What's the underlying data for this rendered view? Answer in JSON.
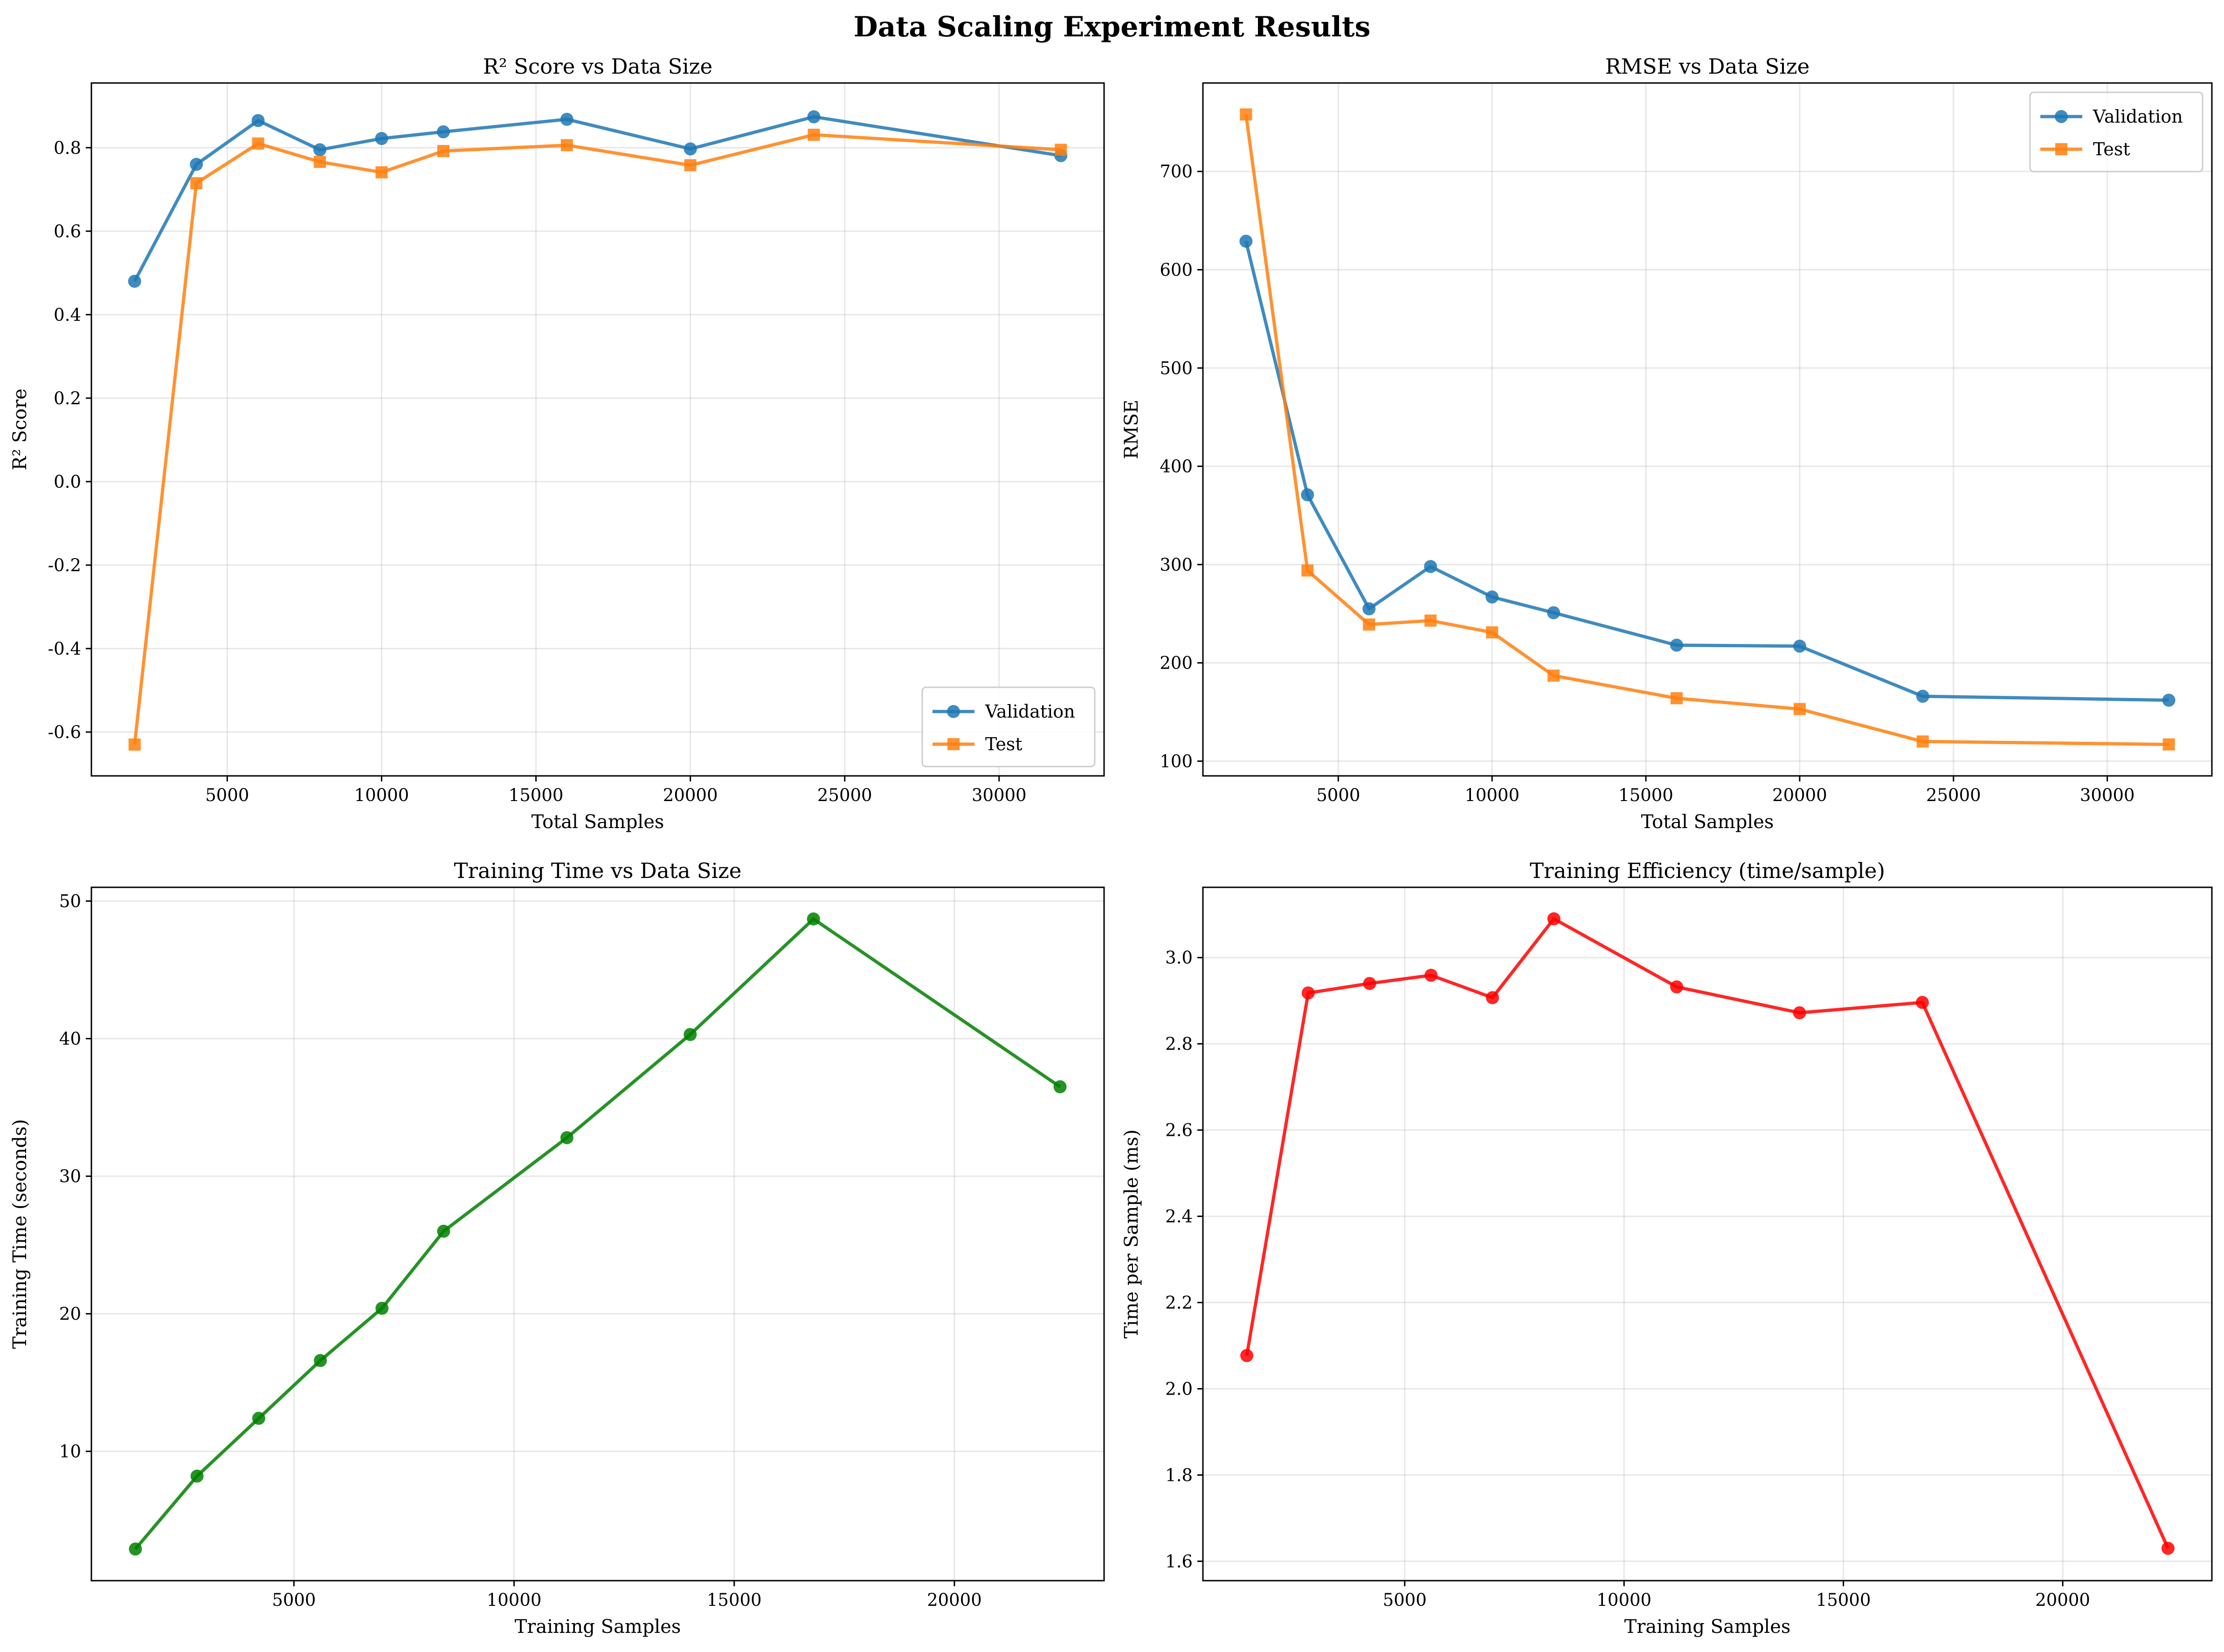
{
  "figure": {
    "suptitle": "Data Scaling Experiment Results"
  },
  "chart_data": [
    {
      "type": "line",
      "title": "R² Score vs Data Size",
      "xlabel": "Total Samples",
      "ylabel": "R² Score",
      "xlim": [
        600,
        33400
      ],
      "ylim": [
        -0.705,
        0.955
      ],
      "xticks": [
        5000,
        10000,
        15000,
        20000,
        25000,
        30000
      ],
      "xtick_labels": [
        "5000",
        "10000",
        "15000",
        "20000",
        "25000",
        "30000"
      ],
      "yticks": [
        -0.6,
        -0.4,
        -0.2,
        0.0,
        0.2,
        0.4,
        0.6,
        0.8
      ],
      "ytick_labels": [
        "-0.6",
        "-0.4",
        "-0.2",
        "0.0",
        "0.2",
        "0.4",
        "0.6",
        "0.8"
      ],
      "grid": true,
      "legend": "bottom-right",
      "x": [
        2000,
        4000,
        6000,
        8000,
        10000,
        12000,
        16000,
        20000,
        24000,
        32000
      ],
      "series": [
        {
          "name": "Validation",
          "color": "#1f77b4",
          "marker": "circle",
          "values": [
            0.48,
            0.76,
            0.865,
            0.795,
            0.822,
            0.838,
            0.868,
            0.797,
            0.874,
            0.781
          ]
        },
        {
          "name": "Test",
          "color": "#ff7f0e",
          "marker": "square",
          "values": [
            -0.63,
            0.715,
            0.81,
            0.766,
            0.741,
            0.792,
            0.806,
            0.758,
            0.831,
            0.795
          ]
        }
      ]
    },
    {
      "type": "line",
      "title": "RMSE vs Data Size",
      "xlabel": "Total Samples",
      "ylabel": "RMSE",
      "xlim": [
        600,
        33400
      ],
      "ylim": [
        85,
        790
      ],
      "xticks": [
        5000,
        10000,
        15000,
        20000,
        25000,
        30000
      ],
      "xtick_labels": [
        "5000",
        "10000",
        "15000",
        "20000",
        "25000",
        "30000"
      ],
      "yticks": [
        100,
        200,
        300,
        400,
        500,
        600,
        700
      ],
      "ytick_labels": [
        "100",
        "200",
        "300",
        "400",
        "500",
        "600",
        "700"
      ],
      "grid": true,
      "legend": "top-right",
      "x": [
        2000,
        4000,
        6000,
        8000,
        10000,
        12000,
        16000,
        20000,
        24000,
        32000
      ],
      "series": [
        {
          "name": "Validation",
          "color": "#1f77b4",
          "marker": "circle",
          "values": [
            629,
            371,
            255,
            298,
            267,
            251,
            218,
            217,
            166,
            162
          ]
        },
        {
          "name": "Test",
          "color": "#ff7f0e",
          "marker": "square",
          "values": [
            758,
            294,
            239,
            243,
            231,
            187,
            164,
            153,
            120,
            117
          ]
        }
      ]
    },
    {
      "type": "line",
      "title": "Training Time vs Data Size",
      "xlabel": "Training Samples",
      "ylabel": "Training Time (seconds)",
      "xlim": [
        400,
        23400
      ],
      "ylim": [
        0.6,
        51.0
      ],
      "xticks": [
        5000,
        10000,
        15000,
        20000
      ],
      "xtick_labels": [
        "5000",
        "10000",
        "15000",
        "20000"
      ],
      "yticks": [
        10,
        20,
        30,
        40,
        50
      ],
      "ytick_labels": [
        "10",
        "20",
        "30",
        "40",
        "50"
      ],
      "grid": true,
      "legend": "none",
      "x": [
        1400,
        2800,
        4200,
        5600,
        7000,
        8400,
        11200,
        14000,
        16800,
        22400
      ],
      "series": [
        {
          "color": "#008000",
          "marker": "circle",
          "values": [
            2.9,
            8.2,
            12.4,
            16.6,
            20.4,
            26.0,
            32.8,
            40.3,
            48.7,
            36.5
          ]
        }
      ]
    },
    {
      "type": "line",
      "title": "Training Efficiency (time/sample)",
      "xlabel": "Training Samples",
      "ylabel": "Time per Sample (ms)",
      "xlim": [
        400,
        23400
      ],
      "ylim": [
        1.555,
        3.163
      ],
      "xticks": [
        5000,
        10000,
        15000,
        20000
      ],
      "xtick_labels": [
        "5000",
        "10000",
        "15000",
        "20000"
      ],
      "yticks": [
        1.6,
        1.8,
        2.0,
        2.2,
        2.4,
        2.6,
        2.8,
        3.0
      ],
      "ytick_labels": [
        "1.6",
        "1.8",
        "2.0",
        "2.2",
        "2.4",
        "2.6",
        "2.8",
        "3.0"
      ],
      "grid": true,
      "legend": "none",
      "x": [
        1400,
        2800,
        4200,
        5600,
        7000,
        8400,
        11200,
        14000,
        16800,
        22400
      ],
      "series": [
        {
          "color": "#ff0000",
          "marker": "circle",
          "values": [
            2.077,
            2.918,
            2.94,
            2.959,
            2.907,
            3.09,
            2.932,
            2.872,
            2.896,
            1.63
          ]
        }
      ]
    }
  ]
}
